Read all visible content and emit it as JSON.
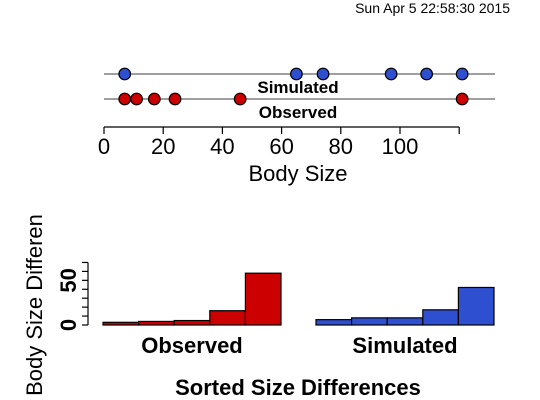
{
  "timestamp": "Sun Apr  5 22:58:30 2015",
  "chart_data": [
    {
      "type": "scatter",
      "xlabel": "Body Size",
      "xticks": [
        0,
        20,
        40,
        60,
        80,
        100
      ],
      "xlim": [
        0,
        120
      ],
      "series": [
        {
          "name": "Simulated",
          "color": "#2f4fd1",
          "values": [
            7,
            65,
            74,
            97,
            109,
            121
          ]
        },
        {
          "name": "Observed",
          "color": "#cc0000",
          "values": [
            7,
            11,
            17,
            24,
            46,
            121
          ]
        }
      ]
    },
    {
      "type": "bar",
      "title": "Sorted Size Differences",
      "ylabel": "Body Size Differen",
      "yticks": [
        0,
        50
      ],
      "ylim": [
        0,
        75
      ],
      "series": [
        {
          "name": "Observed",
          "color": "#cc0000",
          "values": [
            3,
            4,
            5,
            16,
            58
          ]
        },
        {
          "name": "Simulated",
          "color": "#2f4fd1",
          "values": [
            6,
            8,
            8,
            17,
            42
          ]
        }
      ]
    }
  ]
}
